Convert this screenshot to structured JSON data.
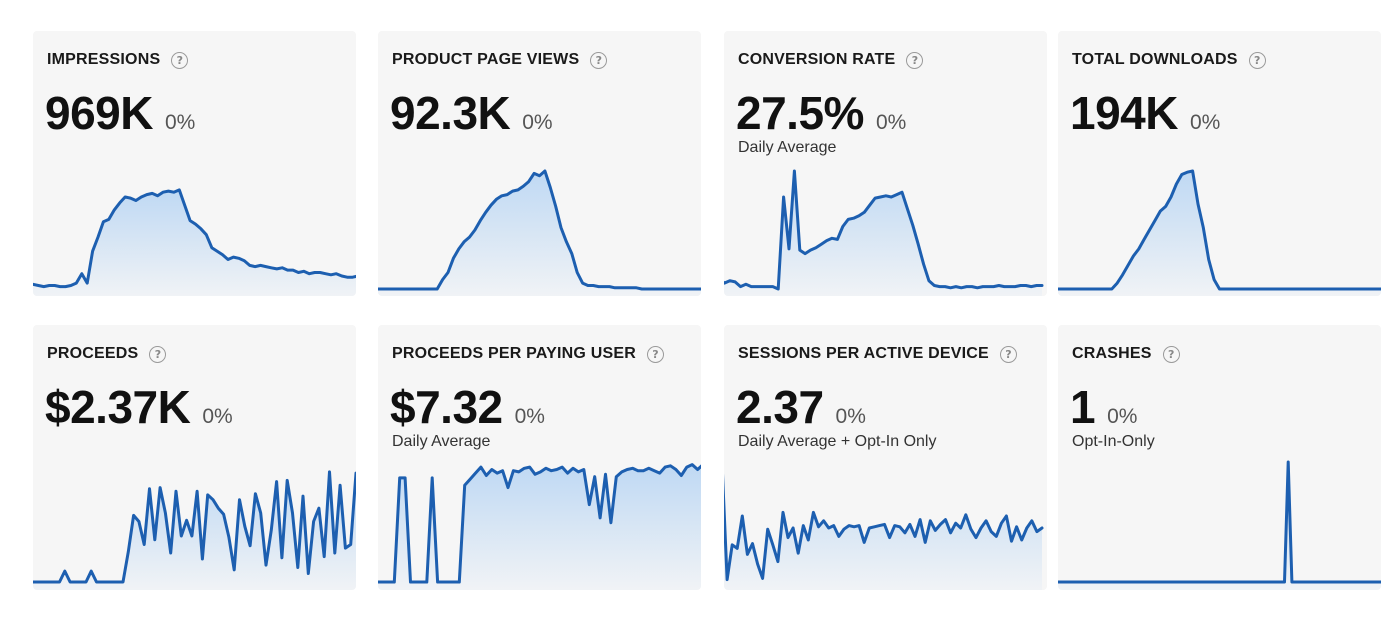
{
  "colors": {
    "line": "#1d5fb0",
    "fill_top": "#bcd7f3",
    "card_bg": "#f6f6f6"
  },
  "help_icon_glyph": "?",
  "cards": [
    {
      "title": "IMPRESSIONS",
      "value": "969K",
      "change": "0%",
      "subtitle": "",
      "chart_data": {
        "type": "area",
        "values": [
          4,
          3,
          2,
          3,
          3,
          2,
          2,
          3,
          5,
          13,
          5,
          32,
          44,
          57,
          59,
          67,
          73,
          78,
          77,
          75,
          78,
          80,
          81,
          79,
          82,
          83,
          82,
          84,
          71,
          58,
          55,
          51,
          46,
          35,
          32,
          29,
          25,
          27,
          26,
          24,
          20,
          19,
          20,
          19,
          18,
          17,
          18,
          16,
          16,
          14,
          15,
          13,
          14,
          14,
          13,
          12,
          13,
          11,
          10,
          10,
          11
        ]
      }
    },
    {
      "title": "PRODUCT PAGE VIEWS",
      "value": "92.3K",
      "change": "0%",
      "subtitle": "",
      "chart_data": {
        "type": "area",
        "values": [
          0,
          0,
          0,
          0,
          0,
          0,
          0,
          0,
          0,
          0,
          0,
          0,
          8,
          14,
          26,
          34,
          40,
          44,
          50,
          58,
          65,
          71,
          76,
          79,
          80,
          83,
          84,
          87,
          91,
          98,
          96,
          100,
          86,
          70,
          52,
          40,
          30,
          14,
          5,
          3,
          3,
          2,
          2,
          2,
          1,
          1,
          1,
          1,
          1,
          0,
          0,
          0,
          0,
          0,
          0,
          0,
          0,
          0,
          0,
          0,
          0
        ]
      }
    },
    {
      "title": "CONVERSION RATE",
      "value": "27.5%",
      "change": "0%",
      "subtitle": "Daily Average",
      "chart_data": {
        "type": "area",
        "values": [
          9,
          5,
          7,
          6,
          2,
          4,
          2,
          2,
          2,
          2,
          2,
          0,
          78,
          34,
          100,
          33,
          30,
          33,
          35,
          38,
          41,
          43,
          42,
          53,
          59,
          60,
          62,
          65,
          71,
          77,
          78,
          79,
          78,
          80,
          82,
          68,
          54,
          38,
          21,
          7,
          3,
          2,
          2,
          1,
          2,
          1,
          2,
          2,
          1,
          2,
          2,
          2,
          3,
          2,
          2,
          2,
          3,
          3,
          2,
          3,
          3
        ]
      }
    },
    {
      "title": "TOTAL DOWNLOADS",
      "value": "194K",
      "change": "0%",
      "subtitle": "",
      "chart_data": {
        "type": "area",
        "values": [
          0,
          0,
          0,
          0,
          0,
          0,
          0,
          0,
          0,
          0,
          0,
          5,
          12,
          20,
          28,
          34,
          42,
          50,
          58,
          66,
          70,
          78,
          89,
          97,
          99,
          100,
          72,
          52,
          25,
          8,
          0,
          0,
          0,
          0,
          0,
          0,
          0,
          0,
          0,
          0,
          0,
          0,
          0,
          0,
          0,
          0,
          0,
          0,
          0,
          0,
          0,
          0,
          0,
          0,
          0,
          0,
          0,
          0,
          0,
          0,
          0
        ]
      }
    },
    {
      "title": "PROCEEDS",
      "value": "$2.37K",
      "change": "0%",
      "subtitle": "",
      "chart_data": {
        "type": "area",
        "values": [
          0,
          0,
          0,
          0,
          0,
          0,
          9,
          0,
          0,
          0,
          0,
          9,
          0,
          0,
          0,
          0,
          0,
          0,
          25,
          55,
          50,
          31,
          77,
          35,
          78,
          57,
          24,
          75,
          38,
          51,
          38,
          75,
          19,
          72,
          68,
          61,
          56,
          37,
          10,
          68,
          46,
          30,
          73,
          57,
          14,
          43,
          83,
          20,
          84,
          57,
          12,
          71,
          7,
          50,
          61,
          21,
          91,
          24,
          80,
          28,
          31,
          90
        ]
      }
    },
    {
      "title": "PROCEEDS PER PAYING USER",
      "value": "$7.32",
      "change": "0%",
      "subtitle": "Daily Average",
      "chart_data": {
        "type": "area",
        "values": [
          0,
          0,
          0,
          0,
          86,
          86,
          0,
          0,
          0,
          0,
          86,
          0,
          0,
          0,
          0,
          0,
          80,
          85,
          90,
          95,
          88,
          93,
          90,
          92,
          78,
          92,
          91,
          94,
          95,
          89,
          91,
          94,
          92,
          93,
          95,
          90,
          94,
          91,
          93,
          64,
          87,
          53,
          89,
          49,
          87,
          91,
          93,
          94,
          92,
          92,
          94,
          92,
          90,
          95,
          96,
          93,
          88,
          95,
          97,
          93,
          97
        ]
      }
    },
    {
      "title": "SESSIONS PER ACTIVE DEVICE",
      "value": "2.37",
      "change": "0%",
      "subtitle": "Daily Average + Opt-In Only",
      "chart_data": {
        "type": "area",
        "values": [
          100,
          2,
          31,
          28,
          55,
          23,
          32,
          15,
          3,
          44,
          31,
          17,
          58,
          37,
          45,
          24,
          47,
          35,
          58,
          46,
          51,
          45,
          47,
          38,
          44,
          47,
          46,
          47,
          33,
          45,
          46,
          47,
          48,
          37,
          47,
          46,
          41,
          48,
          38,
          52,
          33,
          51,
          43,
          48,
          52,
          41,
          49,
          45,
          56,
          44,
          37,
          45,
          51,
          42,
          38,
          49,
          55,
          34,
          46,
          35,
          45,
          51,
          42,
          45
        ]
      }
    },
    {
      "title": "CRASHES",
      "value": "1",
      "change": "0%",
      "subtitle": "Opt-In-Only",
      "chart_data": {
        "type": "area",
        "values": [
          0,
          0,
          0,
          0,
          0,
          0,
          0,
          0,
          0,
          0,
          0,
          0,
          0,
          0,
          0,
          0,
          0,
          0,
          0,
          0,
          0,
          0,
          0,
          0,
          0,
          0,
          0,
          0,
          0,
          0,
          0,
          0,
          0,
          0,
          0,
          0,
          0,
          0,
          0,
          0,
          0,
          0,
          0,
          0,
          0,
          0,
          0,
          0,
          0,
          0,
          0,
          0,
          0,
          0,
          0,
          0,
          0,
          0,
          0,
          0,
          0,
          0,
          100,
          0,
          0,
          0,
          0,
          0,
          0,
          0,
          0,
          0,
          0,
          0,
          0,
          0,
          0,
          0,
          0,
          0,
          0,
          0,
          0,
          0,
          0,
          0,
          0,
          0
        ]
      }
    }
  ]
}
